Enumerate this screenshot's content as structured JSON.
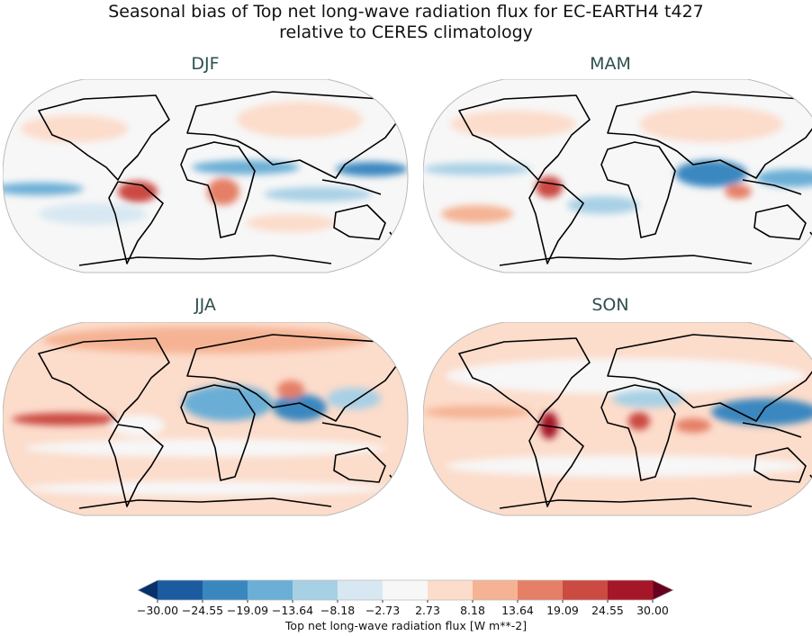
{
  "title_line1": "Seasonal bias of Top net long-wave radiation flux for EC-EARTH4 t427",
  "title_line2": "relative to CERES climatology",
  "panels": [
    {
      "title": "DJF"
    },
    {
      "title": "MAM"
    },
    {
      "title": "JJA"
    },
    {
      "title": "SON"
    }
  ],
  "colorbar": {
    "label": "Top net long-wave radiation flux [W m**-2]",
    "ticks": [
      "−30.00",
      "−24.55",
      "−19.09",
      "−13.64",
      "−8.18",
      "−2.73",
      "2.73",
      "8.18",
      "13.64",
      "19.09",
      "24.55",
      "30.00"
    ],
    "colors": [
      "#1c5ba0",
      "#3a87c0",
      "#6baed6",
      "#a8d0e5",
      "#d8e8f2",
      "#f7f7f7",
      "#fcdccb",
      "#f5b394",
      "#e57f66",
      "#cb4a42",
      "#a51629"
    ],
    "under_color": "#08306b",
    "over_color": "#67001f",
    "extend": "both"
  }
}
